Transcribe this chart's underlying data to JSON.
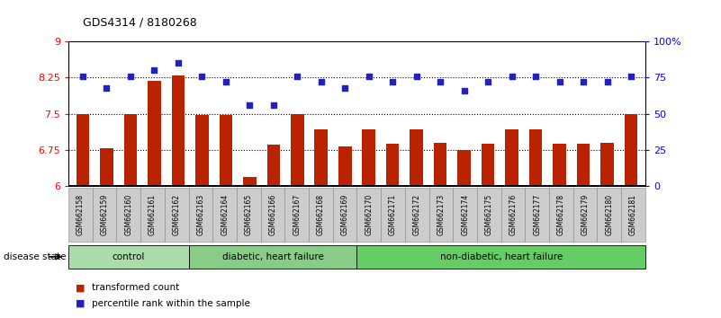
{
  "title": "GDS4314 / 8180268",
  "categories": [
    "GSM662158",
    "GSM662159",
    "GSM662160",
    "GSM662161",
    "GSM662162",
    "GSM662163",
    "GSM662164",
    "GSM662165",
    "GSM662166",
    "GSM662167",
    "GSM662168",
    "GSM662169",
    "GSM662170",
    "GSM662171",
    "GSM662172",
    "GSM662173",
    "GSM662174",
    "GSM662175",
    "GSM662176",
    "GSM662177",
    "GSM662178",
    "GSM662179",
    "GSM662180",
    "GSM662181"
  ],
  "bar_values": [
    7.5,
    6.78,
    7.5,
    8.18,
    8.3,
    7.47,
    7.47,
    6.18,
    6.85,
    7.5,
    7.18,
    6.82,
    7.18,
    6.87,
    7.18,
    6.9,
    6.75,
    6.88,
    7.18,
    7.18,
    6.87,
    6.87,
    6.9,
    7.5
  ],
  "dot_values": [
    76,
    68,
    76,
    80,
    85,
    76,
    72,
    56,
    56,
    76,
    72,
    68,
    76,
    72,
    76,
    72,
    66,
    72,
    76,
    76,
    72,
    72,
    72,
    76
  ],
  "ylim_left": [
    6.0,
    9.0
  ],
  "ylim_right": [
    0,
    100
  ],
  "yticks_left": [
    6.0,
    6.75,
    7.5,
    8.25,
    9.0
  ],
  "yticks_right": [
    0,
    25,
    50,
    75,
    100
  ],
  "ytick_labels_left": [
    "6",
    "6.75",
    "7.5",
    "8.25",
    "9"
  ],
  "ytick_labels_right": [
    "0",
    "25",
    "50",
    "75",
    "100%"
  ],
  "bar_color": "#bb2200",
  "dot_color": "#2222bb",
  "hline_values": [
    6.75,
    7.5,
    8.25
  ],
  "groups": [
    {
      "label": "control",
      "start": 0,
      "end": 4
    },
    {
      "label": "diabetic, heart failure",
      "start": 5,
      "end": 11
    },
    {
      "label": "non-diabetic, heart failure",
      "start": 12,
      "end": 23
    }
  ],
  "group_colors": [
    "#aaddaa",
    "#88cc88",
    "#66cc66"
  ],
  "disease_state_label": "disease state",
  "legend_labels": [
    "transformed count",
    "percentile rank within the sample"
  ],
  "legend_colors": [
    "#bb2200",
    "#2222bb"
  ]
}
